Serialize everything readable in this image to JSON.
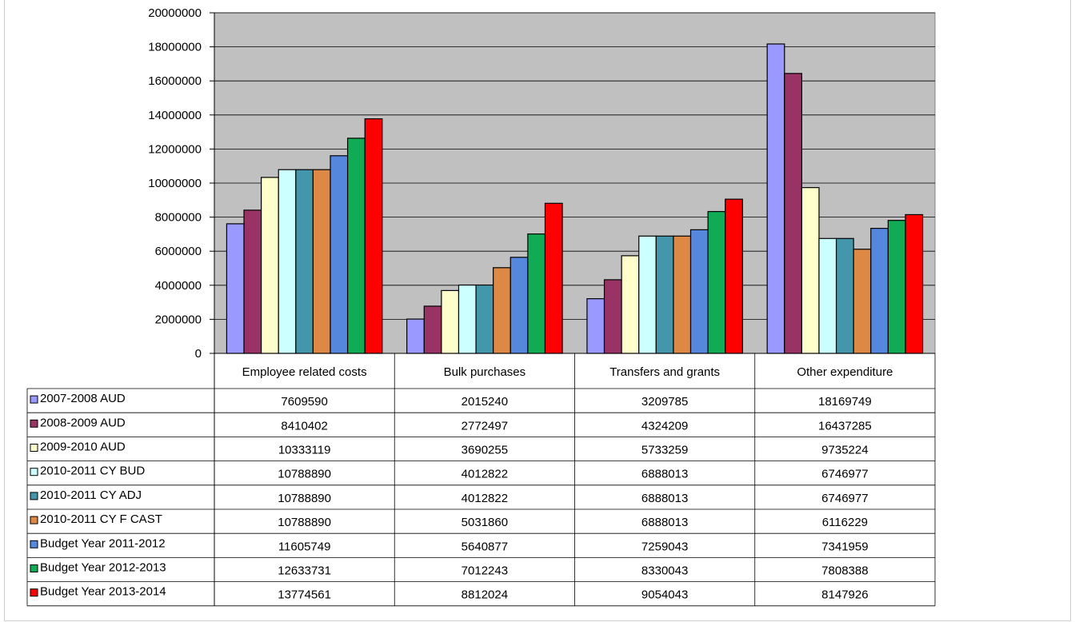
{
  "chart_data": {
    "type": "bar",
    "categories": [
      "Employee related costs",
      "Bulk purchases",
      "Transfers and grants",
      "Other expenditure"
    ],
    "series": [
      {
        "name": "2007-2008 AUD",
        "color": "#9999ff",
        "values": [
          7609590,
          2015240,
          3209785,
          18169749
        ]
      },
      {
        "name": "2008-2009 AUD",
        "color": "#993366",
        "values": [
          8410402,
          2772497,
          4324209,
          16437285
        ]
      },
      {
        "name": "2009-2010 AUD",
        "color": "#ffffcc",
        "values": [
          10333119,
          3690255,
          5733259,
          9735224
        ]
      },
      {
        "name": "2010-2011 CY BUD",
        "color": "#ccffff",
        "values": [
          10788890,
          4012822,
          6888013,
          6746977
        ]
      },
      {
        "name": "2010-2011 CY ADJ",
        "color": "#4496aa",
        "values": [
          10788890,
          4012822,
          6888013,
          6746977
        ]
      },
      {
        "name": "2010-2011 CY F CAST",
        "color": "#dd8844",
        "values": [
          10788890,
          5031860,
          6888013,
          6116229
        ]
      },
      {
        "name": "Budget Year 2011-2012",
        "color": "#5588dd",
        "values": [
          11605749,
          5640877,
          7259043,
          7341959
        ]
      },
      {
        "name": "Budget Year 2012-2013",
        "color": "#11aa55",
        "values": [
          12633731,
          7012243,
          8330043,
          7808388
        ]
      },
      {
        "name": "Budget Year 2013-2014",
        "color": "#ff0000",
        "values": [
          13774561,
          8812024,
          9054043,
          8147926
        ]
      }
    ],
    "y_ticks": [
      "0",
      "2000000",
      "4000000",
      "6000000",
      "8000000",
      "10000000",
      "12000000",
      "14000000",
      "16000000",
      "18000000",
      "20000000"
    ],
    "ylim": [
      0,
      20000000
    ],
    "grid": true,
    "plot_background": "#c0c0c0",
    "legend": "data-table-left"
  }
}
